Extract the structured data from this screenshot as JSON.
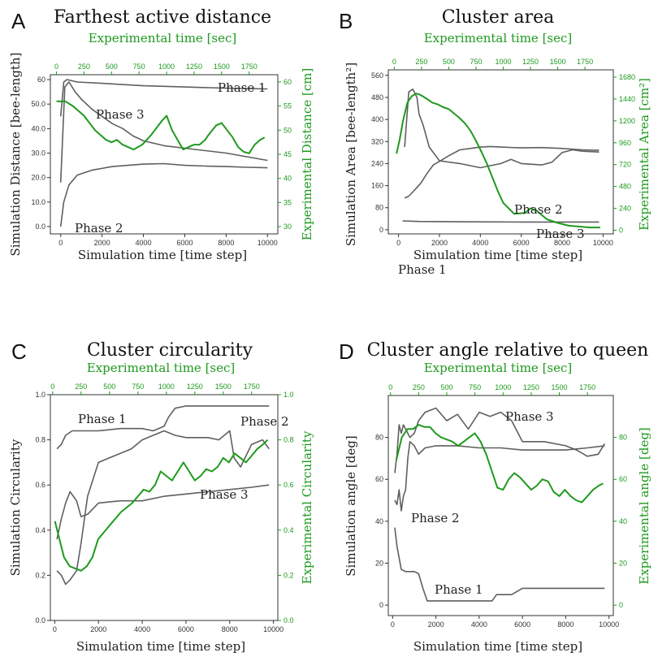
{
  "colors": {
    "sim": "#5f5f5f",
    "exp": "#1e9a1e",
    "axis": "#333333"
  },
  "chart_data": [
    {
      "panel": "A",
      "type": "line",
      "title": "Farthest active distance",
      "xlabel": "Simulation time [time step]",
      "ylabel": "Simulation Distance [bee-length]",
      "x2label": "Experimental time [sec]",
      "y2label": "Experimental Distance [cm]",
      "xlim": [
        -500,
        10500
      ],
      "ylim": [
        -3,
        62
      ],
      "x2lim": [
        -55,
        2010
      ],
      "y2lim": [
        28.5,
        61.5
      ],
      "xticks": [
        0,
        2000,
        4000,
        6000,
        8000,
        10000
      ],
      "yticks": [
        0.0,
        10.0,
        20.0,
        30.0,
        40.0,
        50.0,
        60
      ],
      "ytick_labels": [
        "0.0",
        "10.0",
        "20.0",
        "30.0",
        "40.0",
        "50.0",
        "60"
      ],
      "x2ticks": [
        0,
        250,
        500,
        750,
        1000,
        1250,
        1500,
        1750
      ],
      "y2ticks": [
        30,
        35,
        40,
        45,
        50,
        55,
        60
      ],
      "series": [
        {
          "name": "Phase 1",
          "axis": "sim",
          "x": [
            0,
            150,
            300,
            800,
            2000,
            4000,
            6000,
            8000,
            10000
          ],
          "y": [
            45,
            59,
            60,
            59,
            58.5,
            57.5,
            57,
            56.5,
            56.2
          ]
        },
        {
          "name": "Phase 2",
          "axis": "sim",
          "x": [
            0,
            150,
            400,
            800,
            1500,
            2500,
            4000,
            5000,
            6000,
            7000,
            8000,
            9000,
            10000
          ],
          "y": [
            0,
            10,
            17,
            21,
            23,
            24.5,
            25.5,
            25.7,
            25,
            24.7,
            24.5,
            24.2,
            24
          ]
        },
        {
          "name": "Phase 3",
          "axis": "sim",
          "x": [
            0,
            200,
            400,
            700,
            1000,
            1500,
            2000,
            2500,
            3000,
            3500,
            4000,
            5000,
            6000,
            7000,
            8000,
            9000,
            10000
          ],
          "y": [
            18,
            57,
            59,
            55,
            52,
            48,
            45,
            42,
            40,
            37,
            35,
            33,
            32,
            31,
            30,
            28.5,
            27
          ]
        },
        {
          "name": "",
          "axis": "exp",
          "x": [
            0,
            80,
            150,
            250,
            350,
            400,
            450,
            500,
            550,
            600,
            700,
            780,
            860,
            960,
            1000,
            1050,
            1100,
            1150,
            1250,
            1300,
            1350,
            1380,
            1450,
            1500,
            1550,
            1600,
            1650,
            1700,
            1750,
            1800,
            1850,
            1890
          ],
          "y": [
            56,
            56,
            55,
            53,
            50,
            49,
            48,
            47.5,
            48,
            47,
            46,
            47,
            49,
            52,
            53,
            50,
            48,
            46,
            47,
            47,
            48,
            49,
            51,
            51.5,
            50,
            48.5,
            46.5,
            45.5,
            45.2,
            47,
            48,
            48.5
          ]
        }
      ],
      "annotations": [
        "Phase 1",
        "Phase 2",
        "Phase 3"
      ]
    },
    {
      "panel": "B",
      "type": "line",
      "title": "Cluster area",
      "xlabel": "Simulation time [time step]",
      "ylabel": "Simulation Area [bee-length²]",
      "x2label": "Experimental time [sec]",
      "y2label": "Experimental Area [cm²]",
      "xlim": [
        -500,
        10500
      ],
      "ylim": [
        -15,
        580
      ],
      "x2lim": [
        -55,
        2010
      ],
      "y2lim": [
        -40,
        1760
      ],
      "xticks": [
        0,
        2000,
        4000,
        6000,
        8000,
        10000
      ],
      "yticks": [
        0,
        80,
        160,
        240,
        320,
        400,
        480,
        560
      ],
      "x2ticks": [
        0,
        250,
        500,
        750,
        1000,
        1250,
        1500,
        1750
      ],
      "y2ticks": [
        0,
        240,
        480,
        720,
        960,
        1200,
        1440,
        1680
      ],
      "series": [
        {
          "name": "Phase 1",
          "axis": "sim",
          "x": [
            200,
            1000,
            3000,
            6000,
            9800
          ],
          "y": [
            32,
            30,
            29,
            28,
            28
          ]
        },
        {
          "name": "Phase 2",
          "axis": "sim",
          "x": [
            300,
            500,
            800,
            1100,
            1400,
            1700,
            2000,
            2500,
            3000,
            3500,
            4000,
            4500,
            5000,
            6000,
            7000,
            8000,
            9000,
            9800
          ],
          "y": [
            115,
            122,
            145,
            170,
            205,
            235,
            248,
            270,
            290,
            295,
            300,
            302,
            300,
            297,
            298,
            295,
            290,
            288
          ]
        },
        {
          "name": "Phase 3",
          "axis": "sim",
          "x": [
            300,
            500,
            700,
            900,
            1000,
            1200,
            1500,
            2000,
            3000,
            4000,
            5000,
            5500,
            6000,
            7000,
            7500,
            8000,
            8500,
            9000,
            9800
          ],
          "y": [
            300,
            500,
            510,
            480,
            420,
            380,
            300,
            250,
            240,
            225,
            240,
            255,
            240,
            235,
            245,
            280,
            290,
            285,
            282
          ]
        },
        {
          "name": "",
          "axis": "exp",
          "x": [
            20,
            50,
            80,
            120,
            160,
            200,
            230,
            260,
            300,
            350,
            400,
            450,
            500,
            550,
            600,
            650,
            700,
            750,
            800,
            850,
            900,
            950,
            1000,
            1100,
            1200,
            1250,
            1300,
            1400,
            1500,
            1600,
            1700,
            1800,
            1890
          ],
          "y": [
            840,
            1000,
            1200,
            1400,
            1470,
            1500,
            1490,
            1470,
            1440,
            1400,
            1380,
            1350,
            1330,
            1280,
            1230,
            1170,
            1090,
            980,
            860,
            730,
            580,
            430,
            300,
            180,
            190,
            240,
            220,
            120,
            80,
            50,
            40,
            30,
            30
          ]
        }
      ],
      "annotations": [
        "Phase 1",
        "Phase 2",
        "Phase 3"
      ]
    },
    {
      "panel": "C",
      "type": "line",
      "title": "Cluster circularity",
      "xlabel": "Simulation time [time step]",
      "ylabel": "Simulation Circularity",
      "x2label": "Experimental time [sec]",
      "y2label": "Experimental Circularity",
      "xlim": [
        -200,
        10200
      ],
      "ylim": [
        0,
        1
      ],
      "x2lim": [
        -20,
        1980
      ],
      "y2lim": [
        0,
        1
      ],
      "xticks": [
        0,
        2000,
        4000,
        6000,
        8000,
        10000
      ],
      "yticks": [
        0.0,
        0.2,
        0.4,
        0.6,
        0.8,
        1.0
      ],
      "ytick_labels": [
        "0.0",
        "0.2",
        "0.4",
        "0.6",
        "0.8",
        "1.0"
      ],
      "x2ticks": [
        0,
        250,
        500,
        750,
        1000,
        1250,
        1500,
        1750
      ],
      "y2ticks": [
        0.0,
        0.2,
        0.4,
        0.6,
        0.8,
        1.0
      ],
      "y2tick_labels": [
        "0.0",
        "0.2",
        "0.4",
        "0.6",
        "0.8",
        "1.0"
      ],
      "series": [
        {
          "name": "Phase 1",
          "axis": "sim",
          "x": [
            100,
            300,
            500,
            800,
            1000,
            1500,
            2000,
            3000,
            4000,
            4500,
            5000,
            5200,
            5500,
            6000,
            7000,
            8000,
            9000,
            9800
          ],
          "y": [
            0.76,
            0.78,
            0.82,
            0.84,
            0.84,
            0.84,
            0.84,
            0.85,
            0.85,
            0.84,
            0.86,
            0.9,
            0.94,
            0.95,
            0.95,
            0.95,
            0.95,
            0.95
          ]
        },
        {
          "name": "Phase 2",
          "axis": "sim",
          "x": [
            100,
            300,
            500,
            700,
            1000,
            1200,
            1500,
            2000,
            3000,
            4000,
            5000,
            6000,
            7000,
            8000,
            9000,
            9800
          ],
          "y": [
            0.36,
            0.45,
            0.52,
            0.57,
            0.53,
            0.46,
            0.47,
            0.52,
            0.53,
            0.53,
            0.55,
            0.56,
            0.57,
            0.58,
            0.59,
            0.6
          ]
        },
        {
          "name": "Phase 3",
          "axis": "sim",
          "x": [
            100,
            300,
            500,
            700,
            1000,
            1200,
            1500,
            2000,
            2500,
            3000,
            3500,
            4000,
            5000,
            5500,
            6000,
            7000,
            7500,
            8000,
            8200,
            8500,
            9000,
            9500,
            9800
          ],
          "y": [
            0.22,
            0.2,
            0.16,
            0.18,
            0.22,
            0.34,
            0.55,
            0.7,
            0.72,
            0.74,
            0.76,
            0.8,
            0.84,
            0.82,
            0.81,
            0.81,
            0.8,
            0.84,
            0.72,
            0.68,
            0.78,
            0.8,
            0.76
          ]
        },
        {
          "name": "",
          "axis": "exp",
          "x": [
            20,
            60,
            100,
            150,
            200,
            250,
            300,
            350,
            400,
            500,
            600,
            700,
            750,
            800,
            850,
            900,
            950,
            1000,
            1050,
            1100,
            1150,
            1200,
            1250,
            1300,
            1350,
            1400,
            1450,
            1500,
            1550,
            1600,
            1650,
            1700,
            1750,
            1800,
            1850,
            1890
          ],
          "y": [
            0.44,
            0.36,
            0.28,
            0.24,
            0.23,
            0.22,
            0.24,
            0.28,
            0.36,
            0.42,
            0.48,
            0.52,
            0.55,
            0.58,
            0.57,
            0.6,
            0.66,
            0.64,
            0.62,
            0.66,
            0.7,
            0.66,
            0.62,
            0.64,
            0.67,
            0.66,
            0.68,
            0.72,
            0.7,
            0.74,
            0.72,
            0.7,
            0.73,
            0.76,
            0.78,
            0.8
          ]
        }
      ],
      "annotations": [
        "Phase 1",
        "Phase 2",
        "Phase 3"
      ]
    },
    {
      "panel": "D",
      "type": "line",
      "title": "Cluster angle relative to queen",
      "xlabel": "Simulation time [time step]",
      "ylabel": "Simulation angle [deg]",
      "x2label": "Experimental time [sec]",
      "y2label": "Experimental angle [deg]",
      "xlim": [
        -200,
        10200
      ],
      "ylim": [
        -5,
        100
      ],
      "x2lim": [
        -20,
        1980
      ],
      "y2lim": [
        -5,
        100
      ],
      "xticks": [
        0,
        2000,
        4000,
        6000,
        8000,
        10000
      ],
      "yticks": [
        0,
        20,
        40,
        60,
        80
      ],
      "x2ticks": [
        0,
        250,
        500,
        750,
        1000,
        1250,
        1500,
        1750
      ],
      "y2ticks": [
        0,
        20,
        40,
        60,
        80
      ],
      "series": [
        {
          "name": "Phase 1",
          "axis": "sim",
          "x": [
            100,
            200,
            400,
            600,
            800,
            1000,
            1200,
            1400,
            1600,
            2000,
            3000,
            4000,
            4600,
            4800,
            5000,
            5500,
            6000,
            7000,
            8000,
            9000,
            9800
          ],
          "y": [
            37,
            28,
            17,
            16,
            16,
            16,
            15,
            8,
            2,
            2,
            2,
            2,
            2,
            5,
            5,
            5,
            8,
            8,
            8,
            8,
            8
          ]
        },
        {
          "name": "Phase 2",
          "axis": "sim",
          "x": [
            100,
            200,
            300,
            400,
            500,
            600,
            700,
            800,
            1000,
            1200,
            1500,
            2000,
            3000,
            4000,
            5000,
            6000,
            7000,
            8000,
            9000,
            9800
          ],
          "y": [
            50,
            48,
            55,
            45,
            52,
            55,
            70,
            78,
            76,
            72,
            75,
            76,
            76,
            75,
            75,
            74,
            74,
            74,
            75,
            76
          ]
        },
        {
          "name": "Phase 3",
          "axis": "sim",
          "x": [
            100,
            200,
            300,
            400,
            500,
            600,
            800,
            1000,
            1200,
            1500,
            2000,
            2500,
            3000,
            3500,
            4000,
            4500,
            5000,
            5500,
            6000,
            7000,
            8000,
            8500,
            9000,
            9500,
            9800
          ],
          "y": [
            63,
            72,
            86,
            82,
            86,
            84,
            80,
            82,
            88,
            92,
            94,
            88,
            91,
            84,
            92,
            90,
            92,
            88,
            78,
            78,
            76,
            74,
            71,
            72,
            77
          ]
        },
        {
          "name": "",
          "axis": "exp",
          "x": [
            50,
            100,
            150,
            200,
            250,
            300,
            350,
            400,
            450,
            500,
            550,
            600,
            650,
            700,
            750,
            800,
            850,
            900,
            950,
            1000,
            1050,
            1100,
            1150,
            1200,
            1250,
            1300,
            1350,
            1400,
            1450,
            1500,
            1550,
            1600,
            1650,
            1700,
            1750,
            1800,
            1850,
            1890
          ],
          "y": [
            69,
            80,
            84,
            84,
            86,
            85,
            85,
            82,
            80,
            79,
            78,
            76,
            78,
            80,
            82,
            78,
            72,
            64,
            56,
            55,
            60,
            63,
            61,
            58,
            55,
            57,
            60,
            59,
            54,
            52,
            55,
            52,
            50,
            49,
            52,
            55,
            57,
            58
          ]
        }
      ],
      "annotations": [
        "Phase 1",
        "Phase 2",
        "Phase 3"
      ]
    }
  ]
}
